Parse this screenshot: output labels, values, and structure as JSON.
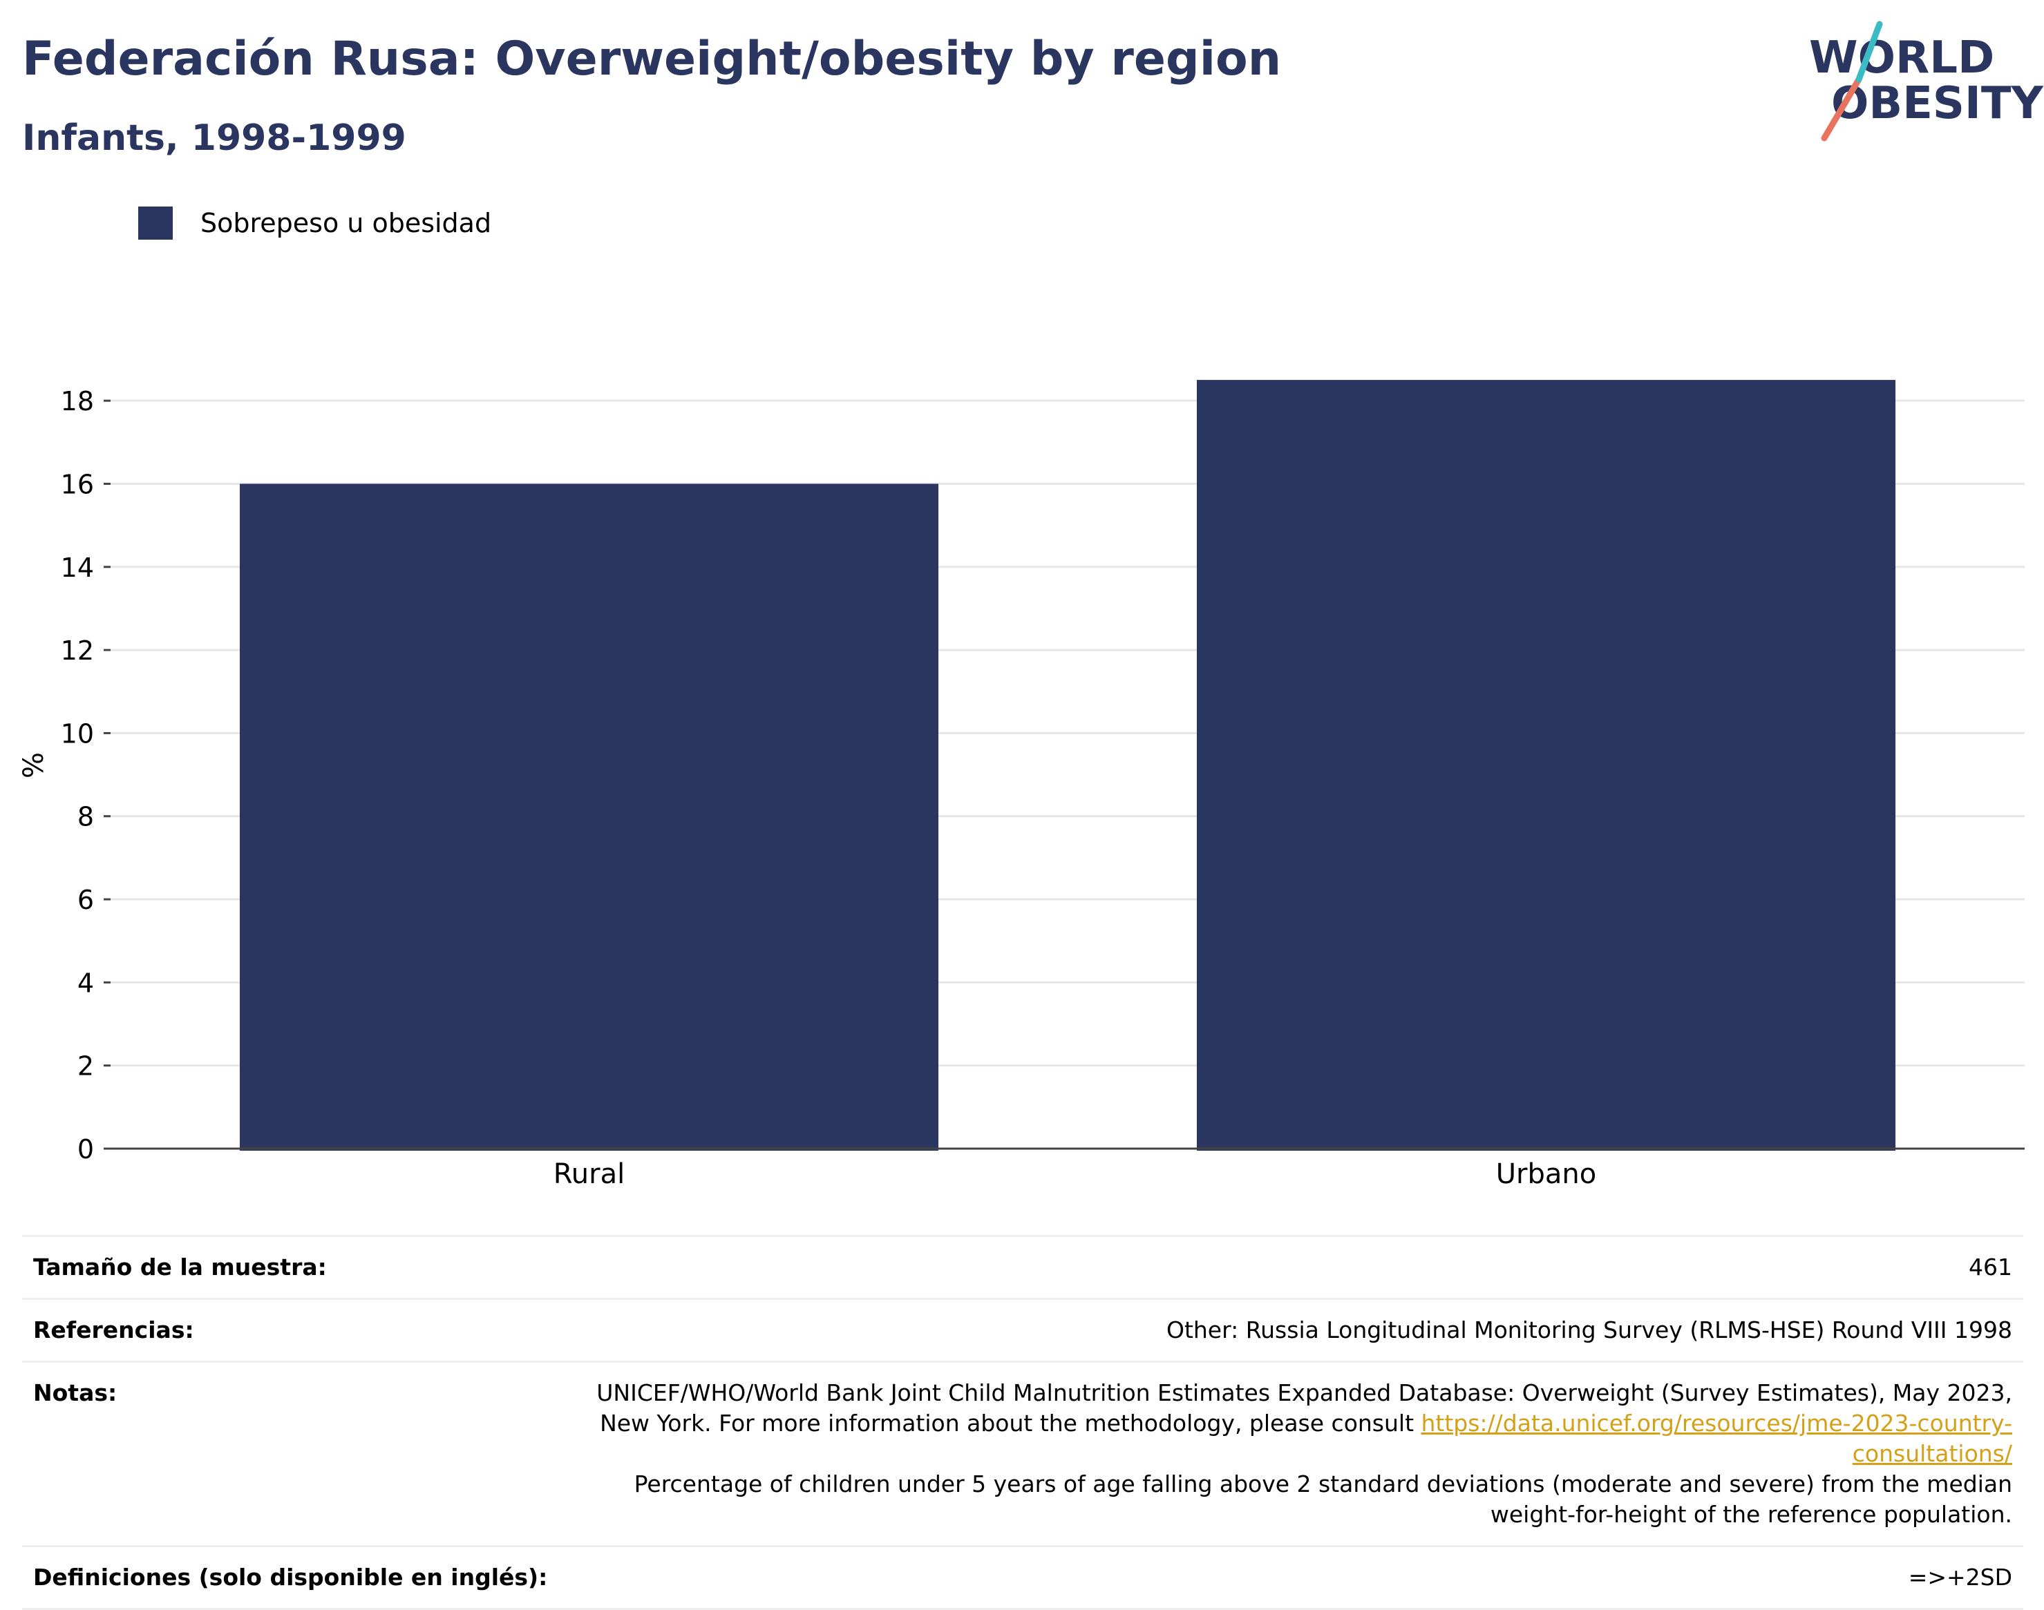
{
  "header": {
    "title": "Federación Rusa: Overweight/obesity by region",
    "subtitle": "Infants, 1998-1999"
  },
  "logo": {
    "line1": "WORLD",
    "line2": "OBESITY"
  },
  "legend": {
    "label": "Sobrepeso u obesidad",
    "color": "#2a365f"
  },
  "chart_data": {
    "type": "bar",
    "categories": [
      "Rural",
      "Urbano"
    ],
    "series": [
      {
        "name": "Sobrepeso u obesidad",
        "values": [
          16.0,
          18.5
        ]
      }
    ],
    "ylabel": "%",
    "ylim": [
      0,
      19
    ],
    "yticks": [
      0,
      2,
      4,
      6,
      8,
      10,
      12,
      14,
      16,
      18
    ],
    "grid": true,
    "legend_position": "top-left",
    "bar_color": "#2a365f"
  },
  "meta": {
    "sample_size_label": "Tamaño de la muestra:",
    "sample_size_value": "461",
    "references_label": "Referencias:",
    "references_value": "Other: Russia Longitudinal Monitoring Survey (RLMS-HSE) Round VIII 1998",
    "notes_label": "Notas:",
    "notes_text_1": "UNICEF/WHO/World Bank Joint Child Malnutrition Estimates Expanded Database: Overweight (Survey Estimates), May 2023, New York. For more information about the methodology, please consult ",
    "notes_link": "https://data.unicef.org/resources/jme-2023-country-consultations/",
    "notes_text_2": "Percentage of children under 5 years of age falling above 2 standard deviations (moderate and severe) from the median weight-for-height of the reference population.",
    "definitions_label": "Definiciones (solo disponible en inglés):",
    "definitions_value": "=>+2SD"
  }
}
